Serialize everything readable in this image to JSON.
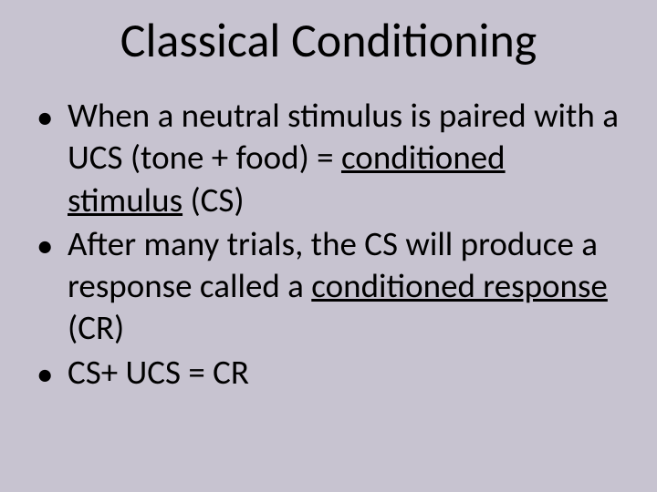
{
  "slide": {
    "title": "Classical Conditioning",
    "background_color": "#c7c3d0",
    "text_color": "#000000",
    "title_fontsize": 52,
    "body_fontsize": 37,
    "bullets": [
      {
        "pre": "When a neutral stimulus is paired with a UCS (tone + food) = ",
        "underlined": "conditioned stimulus",
        "post": " (CS)"
      },
      {
        "pre": "After many trials, the CS will produce a response called a ",
        "underlined": "conditioned response",
        "post": " (CR)"
      },
      {
        "pre": "CS+ UCS = CR",
        "underlined": "",
        "post": ""
      }
    ],
    "bullet_marker": "•"
  }
}
